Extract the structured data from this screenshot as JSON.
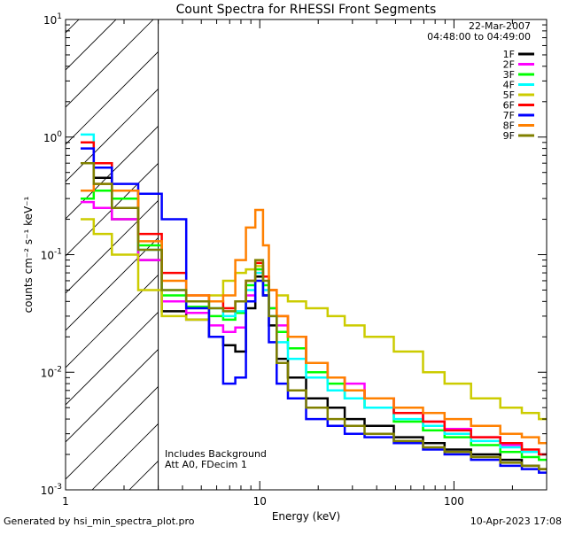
{
  "footer": {
    "generated_by": "Generated by hsi_min_spectra_plot.pro",
    "timestamp": "10-Apr-2023 17:08"
  },
  "chart_data": {
    "type": "line",
    "title": "Count Spectra for RHESSI Front Segments",
    "xlabel": "Energy (keV)",
    "ylabel": "counts cm⁻² s⁻¹ keV⁻¹",
    "xscale": "log",
    "yscale": "log",
    "xlim": [
      1,
      300
    ],
    "ylim": [
      0.001,
      10
    ],
    "x_tick_labels": [
      {
        "value": 1,
        "label": "1"
      },
      {
        "value": 10,
        "label": "10"
      },
      {
        "value": 100,
        "label": "100"
      }
    ],
    "y_tick_labels": [
      {
        "value": 0.001,
        "base": "10",
        "exp": "-3"
      },
      {
        "value": 0.01,
        "base": "10",
        "exp": "-2"
      },
      {
        "value": 0.1,
        "base": "10",
        "exp": "-1"
      },
      {
        "value": 1,
        "base": "10",
        "exp": "0"
      },
      {
        "value": 10,
        "base": "10",
        "exp": "1"
      }
    ],
    "date": "22-Mar-2007",
    "time_range": "04:48:00 to 04:49:00",
    "hatched_region_keV": [
      1,
      3
    ],
    "annotations": [
      "Includes Background",
      "Att A0, FDecim 1"
    ],
    "legend_position": "top-right",
    "series": [
      {
        "name": "1F",
        "color": "#000000",
        "x": [
          1.3,
          1.5,
          2.0,
          2.8,
          3.5,
          5.0,
          6.0,
          7.0,
          8.0,
          9.0,
          10.0,
          10.8,
          11.5,
          13.0,
          15.0,
          20.0,
          25.0,
          30.0,
          40.0,
          60.0,
          80.0,
          100.0,
          150.0,
          200.0,
          250.0,
          300.0
        ],
        "y": [
          0.6,
          0.45,
          0.2,
          0.09,
          0.033,
          0.028,
          0.02,
          0.017,
          0.015,
          0.035,
          0.065,
          0.045,
          0.025,
          0.013,
          0.009,
          0.006,
          0.005,
          0.004,
          0.0035,
          0.0028,
          0.0025,
          0.0022,
          0.002,
          0.0018,
          0.0016,
          0.0015
        ]
      },
      {
        "name": "2F",
        "color": "#ff00ff",
        "x": [
          1.3,
          1.5,
          2.0,
          2.8,
          3.5,
          5.0,
          6.0,
          7.0,
          8.0,
          9.0,
          10.0,
          10.8,
          11.5,
          13.0,
          15.0,
          20.0,
          25.0,
          30.0,
          40.0,
          60.0,
          80.0,
          100.0,
          150.0,
          200.0,
          250.0,
          300.0
        ],
        "y": [
          0.28,
          0.25,
          0.2,
          0.09,
          0.04,
          0.032,
          0.025,
          0.022,
          0.024,
          0.045,
          0.07,
          0.05,
          0.035,
          0.025,
          0.02,
          0.012,
          0.009,
          0.008,
          0.006,
          0.0045,
          0.0038,
          0.0033,
          0.0028,
          0.0024,
          0.0021,
          0.002
        ]
      },
      {
        "name": "3F",
        "color": "#00ff00",
        "x": [
          1.3,
          1.5,
          2.0,
          2.8,
          3.5,
          5.0,
          6.0,
          7.0,
          8.0,
          9.0,
          10.0,
          10.8,
          11.5,
          13.0,
          15.0,
          20.0,
          25.0,
          30.0,
          40.0,
          60.0,
          80.0,
          100.0,
          150.0,
          200.0,
          250.0,
          300.0
        ],
        "y": [
          0.3,
          0.35,
          0.3,
          0.12,
          0.045,
          0.036,
          0.03,
          0.028,
          0.032,
          0.055,
          0.075,
          0.055,
          0.035,
          0.022,
          0.016,
          0.01,
          0.008,
          0.006,
          0.005,
          0.0038,
          0.0032,
          0.0028,
          0.0024,
          0.0021,
          0.0019,
          0.0018
        ]
      },
      {
        "name": "4F",
        "color": "#00ffff",
        "x": [
          1.3,
          1.5,
          2.0,
          2.8,
          3.5,
          5.0,
          6.0,
          7.0,
          8.0,
          9.0,
          10.0,
          10.8,
          11.5,
          13.0,
          15.0,
          20.0,
          25.0,
          30.0,
          40.0,
          60.0,
          80.0,
          100.0,
          150.0,
          200.0,
          250.0,
          300.0
        ],
        "y": [
          1.05,
          0.6,
          0.25,
          0.11,
          0.05,
          0.04,
          0.035,
          0.03,
          0.033,
          0.05,
          0.07,
          0.05,
          0.03,
          0.018,
          0.013,
          0.009,
          0.007,
          0.006,
          0.005,
          0.004,
          0.0035,
          0.003,
          0.0026,
          0.0023,
          0.0021,
          0.002
        ]
      },
      {
        "name": "5F",
        "color": "#cccc00",
        "x": [
          1.3,
          1.5,
          2.0,
          2.8,
          3.5,
          5.0,
          6.0,
          7.0,
          8.0,
          9.0,
          10.0,
          10.8,
          11.5,
          13.0,
          15.0,
          20.0,
          25.0,
          30.0,
          40.0,
          60.0,
          80.0,
          100.0,
          150.0,
          200.0,
          250.0,
          300.0
        ],
        "y": [
          0.2,
          0.15,
          0.1,
          0.05,
          0.03,
          0.028,
          0.045,
          0.06,
          0.07,
          0.075,
          0.08,
          0.065,
          0.05,
          0.045,
          0.04,
          0.035,
          0.03,
          0.025,
          0.02,
          0.015,
          0.01,
          0.008,
          0.006,
          0.005,
          0.0045,
          0.004
        ]
      },
      {
        "name": "6F",
        "color": "#ff0000",
        "x": [
          1.3,
          1.5,
          2.0,
          2.8,
          3.5,
          5.0,
          6.0,
          7.0,
          8.0,
          9.0,
          10.0,
          10.8,
          11.5,
          13.0,
          15.0,
          20.0,
          25.0,
          30.0,
          40.0,
          60.0,
          80.0,
          100.0,
          150.0,
          200.0,
          250.0,
          300.0
        ],
        "y": [
          0.9,
          0.6,
          0.35,
          0.15,
          0.07,
          0.045,
          0.04,
          0.035,
          0.04,
          0.06,
          0.085,
          0.065,
          0.05,
          0.03,
          0.02,
          0.012,
          0.009,
          0.007,
          0.006,
          0.0045,
          0.0038,
          0.0032,
          0.0028,
          0.0025,
          0.0022,
          0.002
        ]
      },
      {
        "name": "7F",
        "color": "#0000ff",
        "x": [
          1.3,
          1.5,
          2.0,
          2.8,
          3.5,
          5.0,
          6.0,
          7.0,
          8.0,
          9.0,
          10.0,
          10.8,
          11.5,
          13.0,
          15.0,
          20.0,
          25.0,
          30.0,
          40.0,
          60.0,
          80.0,
          100.0,
          150.0,
          200.0,
          250.0,
          300.0
        ],
        "y": [
          0.8,
          0.55,
          0.4,
          0.33,
          0.2,
          0.035,
          0.02,
          0.008,
          0.009,
          0.04,
          0.06,
          0.045,
          0.018,
          0.008,
          0.006,
          0.004,
          0.0035,
          0.003,
          0.0028,
          0.0025,
          0.0022,
          0.002,
          0.0018,
          0.0016,
          0.0015,
          0.0014
        ]
      },
      {
        "name": "8F",
        "color": "#ff8000",
        "x": [
          1.3,
          1.5,
          2.0,
          2.8,
          3.5,
          5.0,
          6.0,
          7.0,
          8.0,
          9.0,
          10.0,
          10.8,
          11.5,
          13.0,
          15.0,
          20.0,
          25.0,
          30.0,
          40.0,
          60.0,
          80.0,
          100.0,
          150.0,
          200.0,
          250.0,
          300.0
        ],
        "y": [
          0.35,
          0.4,
          0.35,
          0.13,
          0.06,
          0.045,
          0.04,
          0.045,
          0.09,
          0.17,
          0.24,
          0.12,
          0.05,
          0.03,
          0.02,
          0.012,
          0.009,
          0.007,
          0.006,
          0.005,
          0.0045,
          0.004,
          0.0035,
          0.003,
          0.0028,
          0.0025
        ]
      },
      {
        "name": "9F",
        "color": "#808000",
        "x": [
          1.3,
          1.5,
          2.0,
          2.8,
          3.5,
          5.0,
          6.0,
          7.0,
          8.0,
          9.0,
          10.0,
          10.8,
          11.5,
          13.0,
          15.0,
          20.0,
          25.0,
          30.0,
          40.0,
          60.0,
          80.0,
          100.0,
          150.0,
          200.0,
          250.0,
          300.0
        ],
        "y": [
          0.6,
          0.4,
          0.25,
          0.11,
          0.05,
          0.04,
          0.035,
          0.033,
          0.04,
          0.06,
          0.09,
          0.06,
          0.03,
          0.012,
          0.007,
          0.005,
          0.004,
          0.0035,
          0.003,
          0.0026,
          0.0023,
          0.0021,
          0.0019,
          0.0017,
          0.0016,
          0.0015
        ]
      }
    ]
  }
}
